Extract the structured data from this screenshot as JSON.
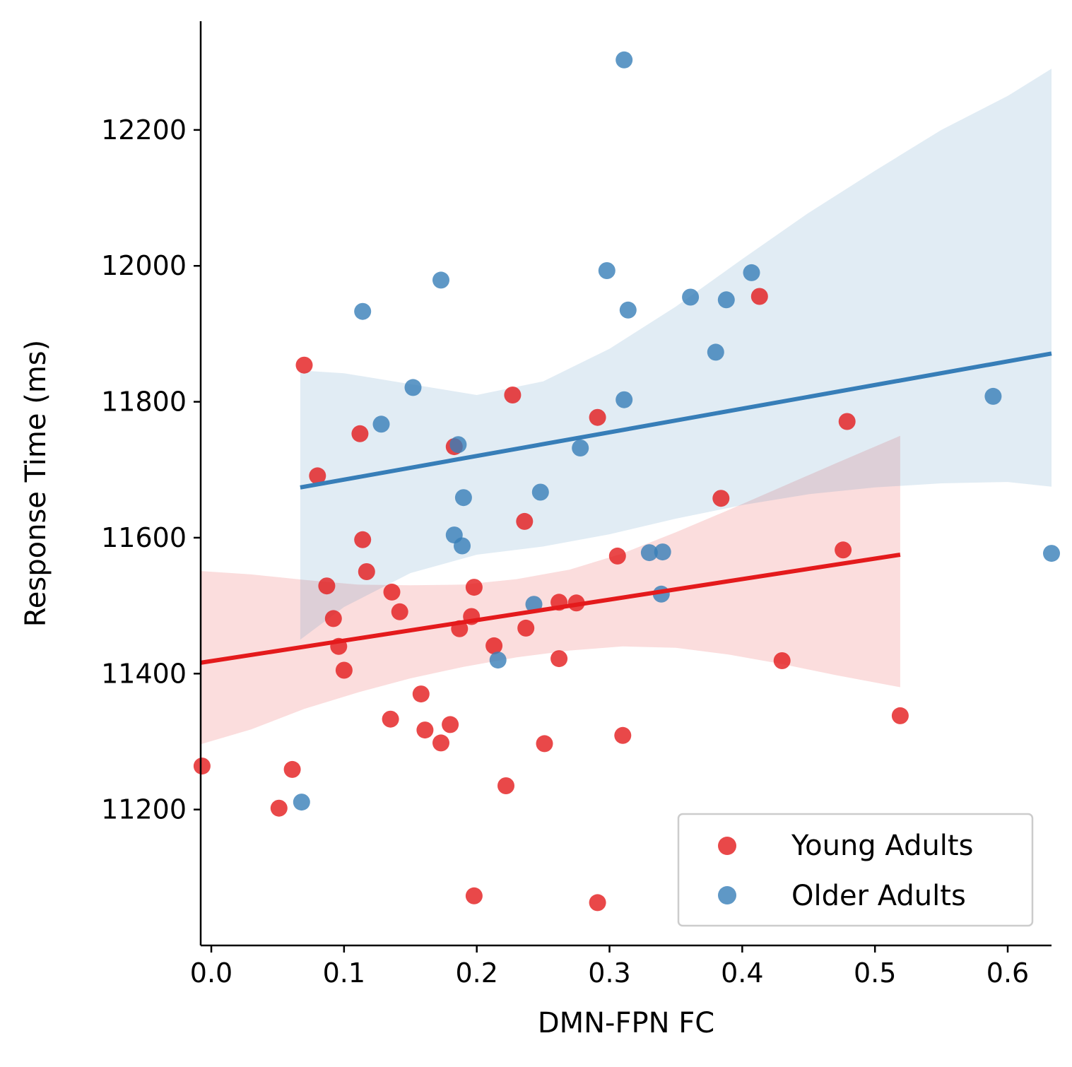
{
  "chart_data": {
    "type": "scatter",
    "xlabel": "DMN-FPN FC",
    "ylabel": "Response Time (ms)",
    "xlim": [
      -0.008,
      0.633
    ],
    "ylim": [
      11000,
      12360
    ],
    "xticks": [
      0.0,
      0.1,
      0.2,
      0.3,
      0.4,
      0.5,
      0.6
    ],
    "xtick_labels": [
      "0.0",
      "0.1",
      "0.2",
      "0.3",
      "0.4",
      "0.5",
      "0.6"
    ],
    "yticks": [
      11200,
      11400,
      11600,
      11800,
      12000,
      12200
    ],
    "ytick_labels": [
      "11200",
      "11400",
      "11600",
      "11800",
      "12000",
      "12200"
    ],
    "grid": false,
    "legend_position": "bottom-right",
    "series": [
      {
        "name": "Young Adults",
        "color": "#e41a1c",
        "points": [
          [
            -0.007,
            11264
          ],
          [
            0.051,
            11202
          ],
          [
            0.061,
            11259
          ],
          [
            0.07,
            11854
          ],
          [
            0.08,
            11691
          ],
          [
            0.087,
            11529
          ],
          [
            0.092,
            11481
          ],
          [
            0.096,
            11440
          ],
          [
            0.1,
            11405
          ],
          [
            0.112,
            11753
          ],
          [
            0.114,
            11597
          ],
          [
            0.117,
            11550
          ],
          [
            0.135,
            11333
          ],
          [
            0.136,
            11520
          ],
          [
            0.142,
            11491
          ],
          [
            0.158,
            11370
          ],
          [
            0.161,
            11317
          ],
          [
            0.173,
            11298
          ],
          [
            0.18,
            11325
          ],
          [
            0.183,
            11734
          ],
          [
            0.187,
            11466
          ],
          [
            0.196,
            11484
          ],
          [
            0.198,
            11527
          ],
          [
            0.198,
            11073
          ],
          [
            0.213,
            11441
          ],
          [
            0.222,
            11235
          ],
          [
            0.227,
            11810
          ],
          [
            0.236,
            11624
          ],
          [
            0.237,
            11467
          ],
          [
            0.251,
            11297
          ],
          [
            0.262,
            11505
          ],
          [
            0.262,
            11422
          ],
          [
            0.275,
            11504
          ],
          [
            0.291,
            11777
          ],
          [
            0.291,
            11063
          ],
          [
            0.306,
            11573
          ],
          [
            0.31,
            11309
          ],
          [
            0.384,
            11658
          ],
          [
            0.413,
            11955
          ],
          [
            0.43,
            11419
          ],
          [
            0.476,
            11582
          ],
          [
            0.479,
            11771
          ],
          [
            0.519,
            11338
          ]
        ],
        "fit": {
          "x": [
            -0.008,
            0.519
          ],
          "y": [
            11416,
            11575
          ]
        },
        "ci": {
          "x": [
            -0.008,
            0.03,
            0.07,
            0.11,
            0.15,
            0.19,
            0.23,
            0.27,
            0.31,
            0.35,
            0.39,
            0.43,
            0.47,
            0.519
          ],
          "lower": [
            11296,
            11318,
            11348,
            11372,
            11393,
            11410,
            11424,
            11434,
            11440,
            11438,
            11428,
            11414,
            11398,
            11380
          ],
          "upper": [
            11551,
            11546,
            11538,
            11531,
            11530,
            11531,
            11539,
            11553,
            11577,
            11608,
            11641,
            11675,
            11709,
            11750
          ]
        }
      },
      {
        "name": "Older Adults",
        "color": "#377eb8",
        "points": [
          [
            0.068,
            11211
          ],
          [
            0.114,
            11933
          ],
          [
            0.128,
            11767
          ],
          [
            0.152,
            11821
          ],
          [
            0.173,
            11979
          ],
          [
            0.183,
            11604
          ],
          [
            0.186,
            11737
          ],
          [
            0.189,
            11588
          ],
          [
            0.19,
            11659
          ],
          [
            0.216,
            11420
          ],
          [
            0.243,
            11502
          ],
          [
            0.248,
            11667
          ],
          [
            0.278,
            11732
          ],
          [
            0.298,
            11993
          ],
          [
            0.311,
            12303
          ],
          [
            0.311,
            11803
          ],
          [
            0.314,
            11935
          ],
          [
            0.33,
            11578
          ],
          [
            0.339,
            11517
          ],
          [
            0.34,
            11579
          ],
          [
            0.361,
            11954
          ],
          [
            0.38,
            11873
          ],
          [
            0.388,
            11950
          ],
          [
            0.407,
            11990
          ],
          [
            0.589,
            11808
          ],
          [
            0.633,
            11577
          ]
        ],
        "fit": {
          "x": [
            0.067,
            0.633
          ],
          "y": [
            11674,
            11871
          ]
        },
        "ci": {
          "x": [
            0.067,
            0.1,
            0.15,
            0.2,
            0.25,
            0.3,
            0.35,
            0.4,
            0.45,
            0.5,
            0.55,
            0.6,
            0.633
          ],
          "lower": [
            11450,
            11498,
            11548,
            11575,
            11587,
            11605,
            11628,
            11648,
            11664,
            11674,
            11680,
            11682,
            11675
          ],
          "upper": [
            11846,
            11842,
            11826,
            11810,
            11830,
            11878,
            11940,
            12010,
            12078,
            12140,
            12200,
            12250,
            12290
          ]
        }
      }
    ]
  }
}
